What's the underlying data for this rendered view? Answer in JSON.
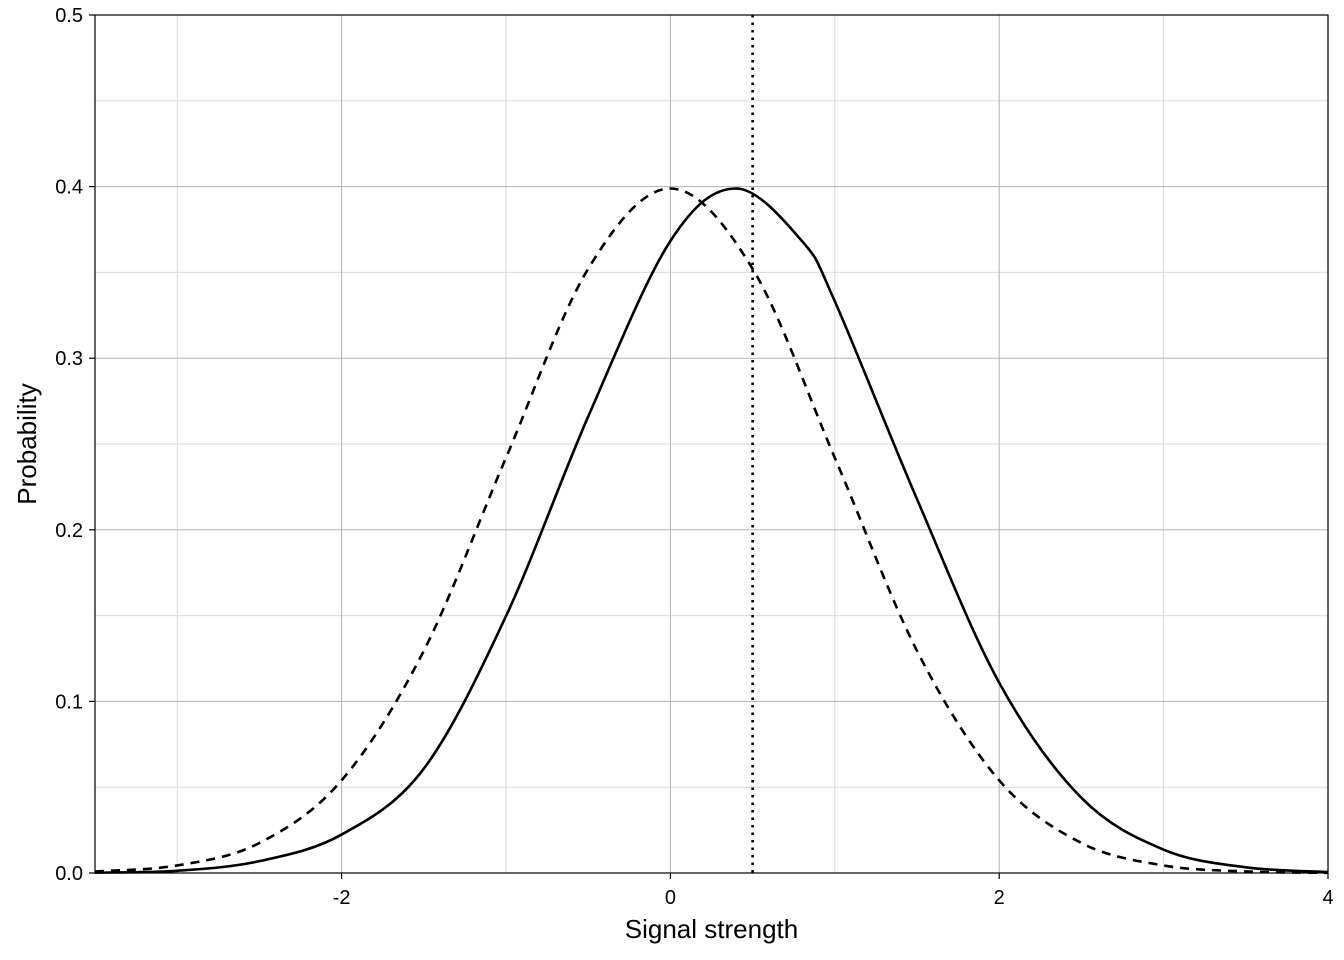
{
  "chart_data": {
    "type": "line",
    "title": "",
    "xlabel": "Signal strength",
    "ylabel": "Probability",
    "xlim": [
      -3.5,
      4
    ],
    "ylim": [
      0,
      0.5
    ],
    "x_ticks": [
      -2,
      0,
      2,
      4
    ],
    "x_tick_labels": [
      "-2",
      "0",
      "2",
      "4"
    ],
    "y_ticks": [
      0,
      0.1,
      0.2,
      0.3,
      0.4,
      0.5
    ],
    "y_tick_labels": [
      "0.0",
      "0.1",
      "0.2",
      "0.3",
      "0.4",
      "0.5"
    ],
    "grid": true,
    "legend": "none",
    "series": [
      {
        "line_style": "dashed",
        "color": "#000000",
        "x": [
          -3.5,
          -3.0,
          -2.5,
          -2.0,
          -1.5,
          -1.0,
          -0.5,
          0.0,
          0.5,
          1.0,
          1.5,
          2.0,
          2.5,
          3.0,
          3.5,
          4.0
        ],
        "values": [
          0.0009,
          0.0044,
          0.0175,
          0.054,
          0.1295,
          0.242,
          0.3521,
          0.3989,
          0.3521,
          0.242,
          0.1295,
          0.054,
          0.0175,
          0.0044,
          0.0009,
          0.0001
        ]
      },
      {
        "line_style": "solid",
        "color": "#000000",
        "x": [
          -3.5,
          -3.0,
          -2.5,
          -2.0,
          -1.5,
          -1.0,
          -0.5,
          0.0,
          0.4,
          0.8,
          1.0,
          1.5,
          2.0,
          2.5,
          3.0,
          3.5,
          4.0
        ],
        "values": [
          0.0002,
          0.0013,
          0.0069,
          0.0224,
          0.0608,
          0.1497,
          0.266,
          0.3683,
          0.3989,
          0.3683,
          0.3332,
          0.2179,
          0.1109,
          0.0438,
          0.0136,
          0.0033,
          0.0006
        ]
      }
    ],
    "reference_lines": [
      {
        "orientation": "vertical",
        "x": 0.5,
        "line_style": "dotted",
        "color": "#000000"
      }
    ]
  }
}
